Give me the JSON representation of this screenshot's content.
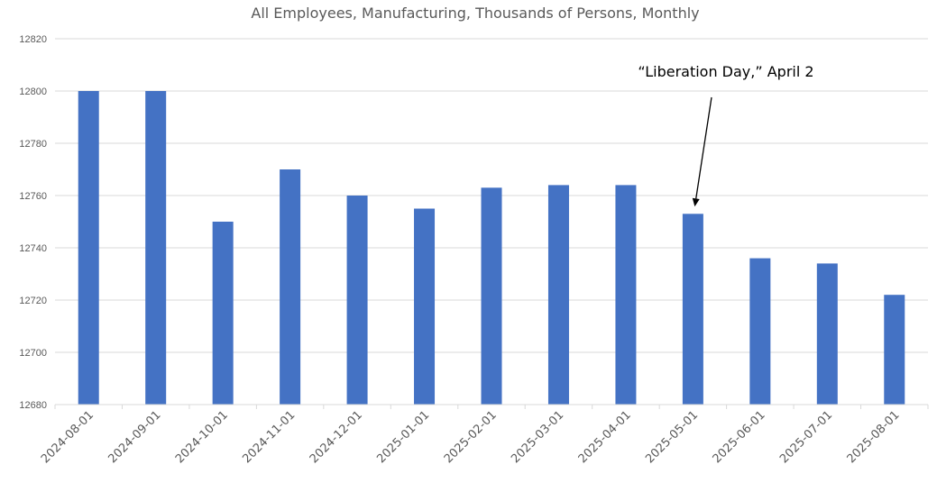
{
  "chart_data": {
    "type": "bar",
    "title": "All Employees, Manufacturing, Thousands of Persons, Monthly",
    "xlabel": "",
    "ylabel": "",
    "categories": [
      "2024-08-01",
      "2024-09-01",
      "2024-10-01",
      "2024-11-01",
      "2024-12-01",
      "2025-01-01",
      "2025-02-01",
      "2025-03-01",
      "2025-04-01",
      "2025-05-01",
      "2025-06-01",
      "2025-07-01",
      "2025-08-01"
    ],
    "values": [
      12800,
      12800,
      12750,
      12770,
      12760,
      12755,
      12763,
      12764,
      12764,
      12753,
      12736,
      12734,
      12722
    ],
    "ylim": [
      12680,
      12820
    ],
    "yticks": [
      12680,
      12700,
      12720,
      12740,
      12760,
      12780,
      12800,
      12820
    ],
    "grid": true,
    "legend": "none",
    "bar_color": "#4472C4",
    "annotation": {
      "text": "“Liberation Day,” April 2",
      "points_to_category": "2025-05-01"
    }
  }
}
